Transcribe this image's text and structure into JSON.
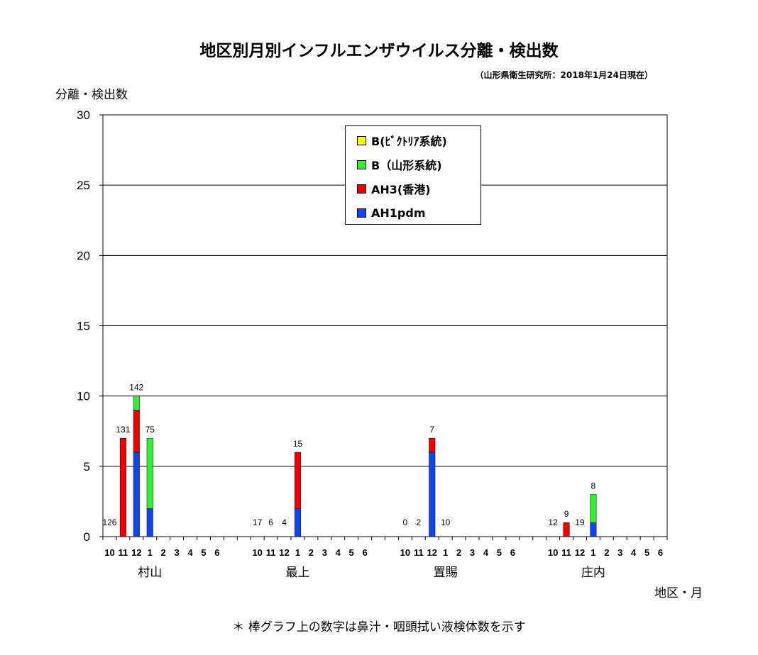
{
  "title": "地区別月別インフルエンザウイルス分離・検出数",
  "subtitle": "（山形県衛生研究所：2018年1月24日現在）",
  "ylabel": "分離・検出数",
  "xlabel": "地区・月",
  "footnote": "＊ 棒グラフ上の数字は鼻汁・咽頭拭い液検体数を示す",
  "colors": {
    "B_victoria": "#ffff00",
    "B_yamagata": "#33ee33",
    "AH3": "#ee0000",
    "AH1pdm": "#1144ee"
  },
  "chart_data": {
    "type": "bar",
    "stacked": true,
    "ylim": [
      0,
      30
    ],
    "yticks": [
      "0",
      "5",
      "10",
      "15",
      "20",
      "25",
      "30"
    ],
    "grid": true,
    "legend_position": "top-center",
    "legend": [
      {
        "key": "B_victoria",
        "label": "B(ﾋﾞｸﾄﾘｱ系統)"
      },
      {
        "key": "B_yamagata",
        "label": "B（山形系統)"
      },
      {
        "key": "AH3",
        "label": "AH3(香港)"
      },
      {
        "key": "AH1pdm",
        "label": "AH1pdm"
      }
    ],
    "months": [
      "10",
      "11",
      "12",
      "1",
      "2",
      "3",
      "4",
      "5",
      "6"
    ],
    "regions": [
      {
        "name": "村山",
        "months": [
          "10",
          "11",
          "12",
          "1",
          "2",
          "3",
          "4",
          "5",
          "6"
        ],
        "counts": [
          "126",
          "131",
          "142",
          "75",
          "",
          "",
          "",
          "",
          ""
        ],
        "AH1pdm": [
          0,
          0,
          6,
          2,
          0,
          0,
          0,
          0,
          0
        ],
        "AH3": [
          0,
          7,
          3,
          0,
          0,
          0,
          0,
          0,
          0
        ],
        "B_yamagata": [
          0,
          0,
          1,
          5,
          0,
          0,
          0,
          0,
          0
        ],
        "B_victoria": [
          0,
          0,
          0,
          0,
          0,
          0,
          0,
          0,
          0
        ]
      },
      {
        "name": "最上",
        "months": [
          "10",
          "11",
          "12",
          "1",
          "2",
          "3",
          "4",
          "5",
          "6"
        ],
        "counts": [
          "17",
          "6",
          "4",
          "15",
          "",
          "",
          "",
          "",
          ""
        ],
        "AH1pdm": [
          0,
          0,
          0,
          2,
          0,
          0,
          0,
          0,
          0
        ],
        "AH3": [
          0,
          0,
          0,
          4,
          0,
          0,
          0,
          0,
          0
        ],
        "B_yamagata": [
          0,
          0,
          0,
          0,
          0,
          0,
          0,
          0,
          0
        ],
        "B_victoria": [
          0,
          0,
          0,
          0,
          0,
          0,
          0,
          0,
          0
        ]
      },
      {
        "name": "置賜",
        "months": [
          "10",
          "11",
          "12",
          "1",
          "2",
          "3",
          "4",
          "5",
          "6"
        ],
        "counts": [
          "0",
          "2",
          "7",
          "10",
          "",
          "",
          "",
          "",
          ""
        ],
        "AH1pdm": [
          0,
          0,
          6,
          0,
          0,
          0,
          0,
          0,
          0
        ],
        "AH3": [
          0,
          0,
          1,
          0,
          0,
          0,
          0,
          0,
          0
        ],
        "B_yamagata": [
          0,
          0,
          0,
          0,
          0,
          0,
          0,
          0,
          0
        ],
        "B_victoria": [
          0,
          0,
          0,
          0,
          0,
          0,
          0,
          0,
          0
        ]
      },
      {
        "name": "庄内",
        "months": [
          "10",
          "11",
          "12",
          "1",
          "2",
          "3",
          "4",
          "5",
          "6"
        ],
        "counts": [
          "12",
          "9",
          "19",
          "8",
          "",
          "",
          "",
          "",
          ""
        ],
        "AH1pdm": [
          0,
          0,
          0,
          1,
          0,
          0,
          0,
          0,
          0
        ],
        "AH3": [
          0,
          1,
          0,
          0,
          0,
          0,
          0,
          0,
          0
        ],
        "B_yamagata": [
          0,
          0,
          0,
          2,
          0,
          0,
          0,
          0,
          0
        ],
        "B_victoria": [
          0,
          0,
          0,
          0,
          0,
          0,
          0,
          0,
          0
        ]
      }
    ]
  }
}
